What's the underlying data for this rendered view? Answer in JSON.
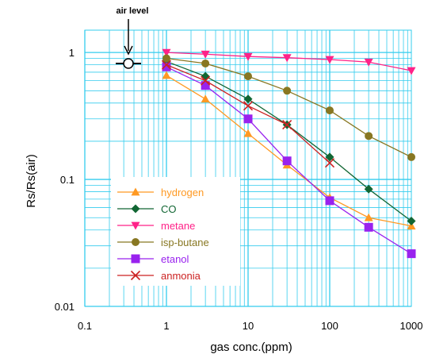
{
  "chart_data": {
    "type": "line",
    "x_scale": "log",
    "y_scale": "log",
    "xlim": [
      0.1,
      1000
    ],
    "ylim": [
      0.01,
      1.5
    ],
    "xlabel": "gas conc.(ppm)",
    "ylabel": "Rs/Rs(air)",
    "x_tick_labels": [
      "0.1",
      "1",
      "10",
      "100",
      "1000"
    ],
    "y_tick_labels": [
      "0.01",
      "0.1",
      "1"
    ],
    "grid": true,
    "grid_color": "#33ccee",
    "legend_position": "lower-left",
    "annotation": {
      "text": "air  level",
      "x": 0.35,
      "y": 1.0
    },
    "series": [
      {
        "name": "hydrogen",
        "color": "#ff9922",
        "marker": "triangle-up",
        "x": [
          1,
          3,
          10,
          30,
          100,
          300,
          1000
        ],
        "y": [
          0.66,
          0.43,
          0.23,
          0.13,
          0.072,
          0.05,
          0.043
        ]
      },
      {
        "name": "CO",
        "color": "#116633",
        "marker": "diamond",
        "x": [
          1,
          3,
          10,
          30,
          100,
          300,
          1000
        ],
        "y": [
          0.85,
          0.65,
          0.43,
          0.27,
          0.15,
          0.084,
          0.047
        ]
      },
      {
        "name": "metane",
        "color": "#ff2288",
        "marker": "triangle-down",
        "x": [
          1,
          3,
          10,
          30,
          100,
          300,
          1000
        ],
        "y": [
          1.0,
          0.97,
          0.93,
          0.91,
          0.88,
          0.84,
          0.72
        ]
      },
      {
        "name": "isp-butane",
        "color": "#887722",
        "marker": "circle",
        "x": [
          1,
          3,
          10,
          30,
          100,
          300,
          1000
        ],
        "y": [
          0.9,
          0.82,
          0.65,
          0.5,
          0.35,
          0.22,
          0.15
        ]
      },
      {
        "name": "etanol",
        "color": "#9922ee",
        "marker": "square",
        "x": [
          1,
          3,
          10,
          30,
          100,
          300,
          1000
        ],
        "y": [
          0.77,
          0.55,
          0.3,
          0.14,
          0.068,
          0.042,
          0.026
        ]
      },
      {
        "name": "anmonia",
        "color": "#cc2222",
        "marker": "x",
        "x": [
          1,
          3,
          10,
          30,
          100
        ],
        "y": [
          0.8,
          0.6,
          0.38,
          0.27,
          0.135
        ]
      }
    ]
  }
}
